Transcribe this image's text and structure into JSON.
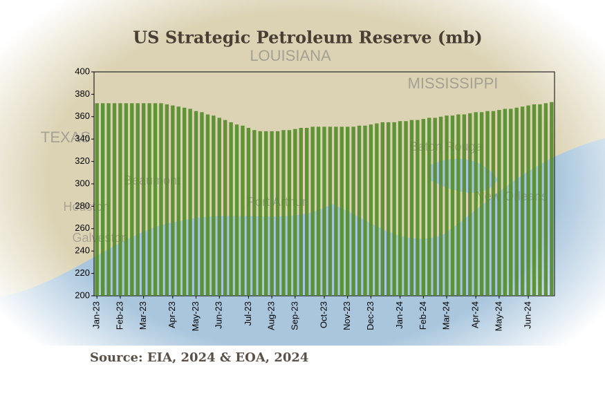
{
  "chart_data": {
    "type": "bar",
    "title": "US Strategic Petroleum Reserve  (mb)",
    "source": "Source: EIA, 2024 & EOA, 2024",
    "categories": [
      "Jan-23",
      null,
      null,
      null,
      "Feb-23",
      null,
      null,
      null,
      "Mar-23",
      null,
      null,
      null,
      null,
      "Apr-23",
      null,
      null,
      null,
      "May-23",
      null,
      null,
      null,
      "Jun-23",
      null,
      null,
      null,
      null,
      "Jul-23",
      null,
      null,
      null,
      "Aug-23",
      null,
      null,
      null,
      "Sep-23",
      null,
      null,
      null,
      null,
      "Oct-23",
      null,
      null,
      null,
      "Nov-23",
      null,
      null,
      null,
      "Dec-23",
      null,
      null,
      null,
      null,
      "Jan-24",
      null,
      null,
      null,
      "Feb-24",
      null,
      null,
      null,
      "Mar-24",
      null,
      null,
      null,
      null,
      "Apr-24",
      null,
      null,
      null,
      "May-24",
      null,
      null,
      null,
      null,
      "Jun-24",
      null,
      null,
      null,
      null
    ],
    "values": [
      372,
      372,
      372,
      372,
      372,
      372,
      372,
      372,
      372,
      372,
      372,
      372,
      371,
      370,
      369,
      368,
      367,
      365,
      364,
      362,
      361,
      359,
      357,
      355,
      353,
      352,
      350,
      348,
      347,
      347,
      347,
      347,
      348,
      348,
      349,
      350,
      350,
      351,
      351,
      351,
      351,
      351,
      351,
      351,
      351,
      352,
      352,
      353,
      354,
      355,
      355,
      355,
      356,
      356,
      357,
      357,
      358,
      359,
      359,
      360,
      361,
      361,
      362,
      362,
      363,
      364,
      364,
      365,
      365,
      366,
      367,
      367,
      368,
      369,
      370,
      371,
      371,
      372,
      373
    ],
    "color": "#4e8a23",
    "ylim": [
      200,
      400
    ],
    "yticks": [
      200,
      220,
      240,
      260,
      280,
      300,
      320,
      340,
      360,
      380,
      400
    ],
    "grid": false
  },
  "map_labels": [
    "LOUISIANA",
    "MISSISSIPPI",
    "TEXAS",
    "Baton Rouge",
    "New Orleans",
    "Houston",
    "Galveston",
    "Beaumont",
    "Port Arthur"
  ]
}
